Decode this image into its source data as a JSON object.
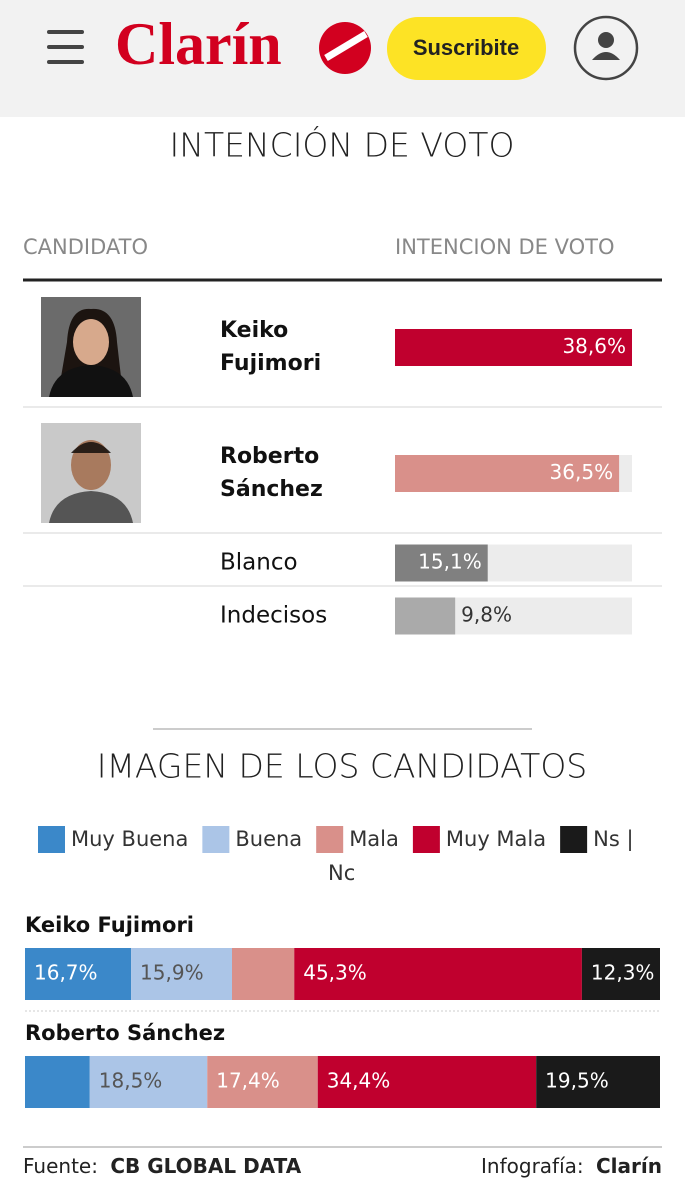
{
  "header": {
    "logo": "Clarín",
    "subscribe": "Suscribite"
  },
  "chart_data": [
    {
      "type": "bar",
      "title": "INTENCIÓN DE VOTO",
      "column_headers": [
        "CANDIDATO",
        "INTENCION DE VOTO"
      ],
      "categories": [
        "Keiko Fujimori",
        "Roberto Sánchez",
        "Blanco",
        "Indecisos"
      ],
      "values": [
        38.6,
        36.5,
        15.1,
        9.8
      ],
      "value_labels": [
        "38,6%",
        "36,5%",
        "15,1%",
        "9,8%"
      ],
      "colors": [
        "#c0002e",
        "#d9908a",
        "#808080",
        "#aaaaaa"
      ]
    },
    {
      "type": "stacked_bar",
      "title": "IMAGEN DE LOS CANDIDATOS",
      "categories": [
        "Keiko Fujimori",
        "Roberto Sánchez"
      ],
      "series": [
        {
          "name": "Muy Buena",
          "color": "#3b88c9",
          "values": [
            16.7,
            10.2
          ],
          "value_labels": [
            "16,7%",
            null
          ]
        },
        {
          "name": "Buena",
          "color": "#abc5e7",
          "values": [
            15.9,
            18.5
          ],
          "value_labels": [
            "15,9%",
            "18,5%"
          ]
        },
        {
          "name": "Mala",
          "color": "#d9908a",
          "values": [
            9.8,
            17.4
          ],
          "value_labels": [
            null,
            "17,4%"
          ]
        },
        {
          "name": "Muy Mala",
          "color": "#c0002e",
          "values": [
            45.3,
            34.4
          ],
          "value_labels": [
            "45,3%",
            "34,4%"
          ]
        },
        {
          "name": "Ns | Nc",
          "color": "#1a1a1a",
          "values": [
            12.3,
            19.5
          ],
          "value_labels": [
            "12,3%",
            "19,5%"
          ]
        }
      ]
    }
  ],
  "footer": {
    "source_label": "Fuente:",
    "source": "CB GLOBAL DATA",
    "credit_label": "Infografía:",
    "credit": "Clarín"
  }
}
